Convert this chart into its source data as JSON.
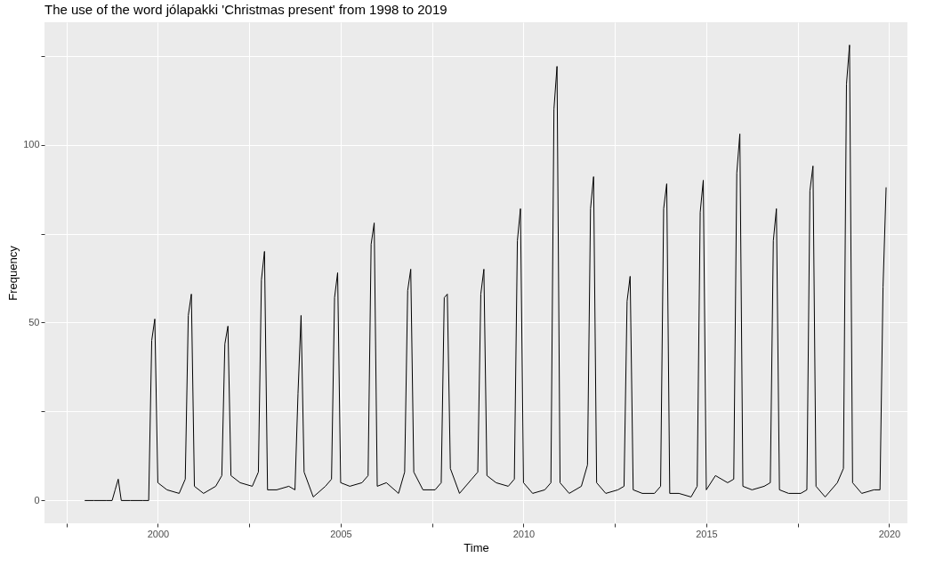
{
  "chart_data": {
    "type": "line",
    "title": "The use of the word jólapakki 'Christmas present' from 1998 to 2019",
    "xlabel": "Time",
    "ylabel": "Frequency",
    "x": [
      1998,
      1998.25,
      1998.583,
      1998.75,
      1998.833,
      1998.917,
      1999,
      1999.25,
      1999.583,
      1999.75,
      1999.833,
      1999.917,
      2000,
      2000.25,
      2000.583,
      2000.75,
      2000.833,
      2000.917,
      2001,
      2001.25,
      2001.583,
      2001.75,
      2001.833,
      2001.917,
      2002,
      2002.25,
      2002.583,
      2002.75,
      2002.833,
      2002.917,
      2003,
      2003.25,
      2003.583,
      2003.75,
      2003.833,
      2003.917,
      2004,
      2004.25,
      2004.583,
      2004.75,
      2004.833,
      2004.917,
      2005,
      2005.25,
      2005.583,
      2005.75,
      2005.833,
      2005.917,
      2006,
      2006.25,
      2006.583,
      2006.75,
      2006.833,
      2006.917,
      2007,
      2007.25,
      2007.583,
      2007.75,
      2007.833,
      2007.917,
      2008,
      2008.25,
      2008.583,
      2008.75,
      2008.833,
      2008.917,
      2009,
      2009.25,
      2009.583,
      2009.75,
      2009.833,
      2009.917,
      2010,
      2010.25,
      2010.583,
      2010.75,
      2010.833,
      2010.917,
      2011,
      2011.25,
      2011.583,
      2011.75,
      2011.833,
      2011.917,
      2012,
      2012.25,
      2012.583,
      2012.75,
      2012.833,
      2012.917,
      2013,
      2013.25,
      2013.583,
      2013.75,
      2013.833,
      2013.917,
      2014,
      2014.25,
      2014.583,
      2014.75,
      2014.833,
      2014.917,
      2015,
      2015.25,
      2015.583,
      2015.75,
      2015.833,
      2015.917,
      2016,
      2016.25,
      2016.583,
      2016.75,
      2016.833,
      2016.917,
      2017,
      2017.25,
      2017.583,
      2017.75,
      2017.833,
      2017.917,
      2018,
      2018.25,
      2018.583,
      2018.75,
      2018.833,
      2018.917,
      2019,
      2019.25,
      2019.583,
      2019.75,
      2019.833,
      2019.917
    ],
    "series": [
      {
        "color": "#000000",
        "values": [
          0,
          0,
          0,
          0,
          3,
          6,
          0,
          0,
          0,
          0,
          45,
          51,
          5,
          3,
          2,
          6,
          52,
          58,
          4,
          2,
          4,
          7,
          44,
          49,
          7,
          5,
          4,
          8,
          62,
          70,
          3,
          3,
          4,
          3,
          30,
          52,
          8,
          1,
          4,
          6,
          57,
          64,
          5,
          4,
          5,
          7,
          72,
          78,
          4,
          5,
          2,
          8,
          59,
          65,
          8,
          3,
          3,
          5,
          57,
          58,
          9,
          2,
          6,
          8,
          58,
          65,
          7,
          5,
          4,
          6,
          73,
          82,
          5,
          2,
          3,
          5,
          110,
          122,
          5,
          2,
          4,
          10,
          82,
          91,
          5,
          2,
          3,
          4,
          56,
          63,
          3,
          2,
          2,
          4,
          82,
          89,
          2,
          2,
          1,
          4,
          81,
          90,
          3,
          7,
          5,
          6,
          92,
          103,
          4,
          3,
          4,
          5,
          73,
          82,
          3,
          2,
          2,
          3,
          87,
          94,
          4,
          1,
          5,
          9,
          117,
          128,
          5,
          2,
          3,
          3,
          60,
          88
        ]
      }
    ],
    "xlim": [
      1996.9,
      2020.5
    ],
    "ylim": [
      -6.4,
      134.4
    ],
    "xticks": [
      {
        "value": 1997.5,
        "label": null
      },
      2000,
      {
        "value": 2002.5,
        "label": null
      },
      2005,
      {
        "value": 2007.5,
        "label": null
      },
      2010,
      {
        "value": 2012.5,
        "label": null
      },
      2015,
      {
        "value": 2017.5,
        "label": null
      },
      2020
    ],
    "yticks": [
      0,
      {
        "value": 25,
        "label": null
      },
      50,
      {
        "value": 75,
        "label": null
      },
      100,
      {
        "value": 125,
        "label": null
      }
    ],
    "grid": true
  }
}
